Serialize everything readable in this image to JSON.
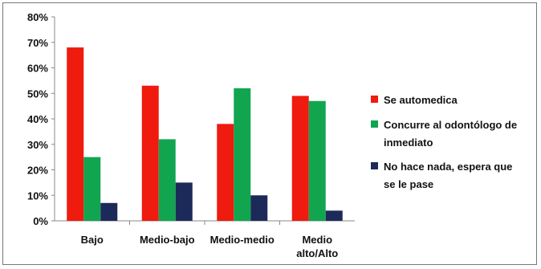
{
  "chart_data": {
    "type": "bar",
    "categories": [
      "Bajo",
      "Medio-bajo",
      "Medio-medio",
      "Medio alto/Alto"
    ],
    "category_label_lines": [
      [
        "Bajo"
      ],
      [
        "Medio-bajo"
      ],
      [
        "Medio-medio"
      ],
      [
        "Medio",
        "alto/Alto"
      ]
    ],
    "series": [
      {
        "name": "Se automedica",
        "legend_lines": [
          "Se automedica"
        ],
        "color": "#ee1b0e",
        "values": [
          68,
          53,
          38,
          49
        ]
      },
      {
        "name": "Concurre al odontólogo de inmediato",
        "legend_lines": [
          "Concurre al odontólogo de",
          "inmediato"
        ],
        "color": "#12a550",
        "values": [
          25,
          32,
          52,
          47
        ]
      },
      {
        "name": "No hace nada, espera que se le pase",
        "legend_lines": [
          "No hace nada, espera que",
          "se le pase"
        ],
        "color": "#1c2a5a",
        "values": [
          7,
          15,
          10,
          4
        ]
      }
    ],
    "yticks": [
      "0%",
      "10%",
      "20%",
      "30%",
      "40%",
      "50%",
      "60%",
      "70%",
      "80%"
    ],
    "ylim": [
      0,
      80
    ],
    "title": "",
    "xlabel": "",
    "ylabel": "",
    "grid": false,
    "legend_position": "right"
  }
}
